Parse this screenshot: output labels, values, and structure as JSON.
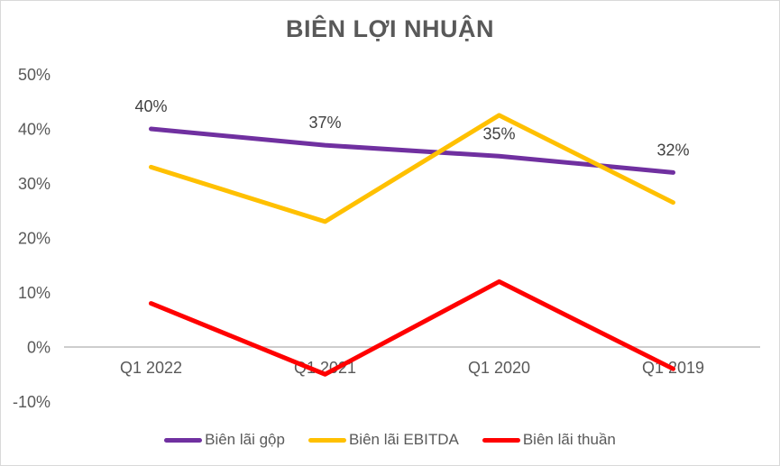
{
  "chart_data": {
    "type": "line",
    "title": "BIÊN LỢI NHUẬN",
    "categories": [
      "Q1 2022",
      "Q1 2021",
      "Q1 2020",
      "Q1 2019"
    ],
    "series": [
      {
        "name": "Biên lãi gộp",
        "color": "#7030A0",
        "values": [
          40,
          37,
          35,
          32
        ],
        "data_labels": [
          "40%",
          "37%",
          "35%",
          "32%"
        ]
      },
      {
        "name": "Biên lãi EBITDA",
        "color": "#FFC000",
        "values": [
          33,
          23,
          42.5,
          26.5
        ],
        "data_labels": null
      },
      {
        "name": "Biên lãi thuần",
        "color": "#FF0000",
        "values": [
          8,
          -5,
          12,
          -4
        ],
        "data_labels": null
      }
    ],
    "y_axis": {
      "min": -10,
      "max": 50,
      "tick_step": 10,
      "ticks": [
        {
          "value": 50,
          "label": "50%"
        },
        {
          "value": 40,
          "label": "40%"
        },
        {
          "value": 30,
          "label": "30%"
        },
        {
          "value": 20,
          "label": "20%"
        },
        {
          "value": 10,
          "label": "10%"
        },
        {
          "value": 0,
          "label": "0%"
        },
        {
          "value": -10,
          "label": "-10%"
        }
      ]
    },
    "grid": "zero-axis-line-only",
    "legend_position": "bottom",
    "colors": {
      "axis_text": "#595959",
      "data_label_text": "#404040",
      "title_text": "#595959",
      "zero_line": "#C6C6C6",
      "chart_border": "#D9D9D9",
      "background": "#FFFFFF"
    }
  }
}
